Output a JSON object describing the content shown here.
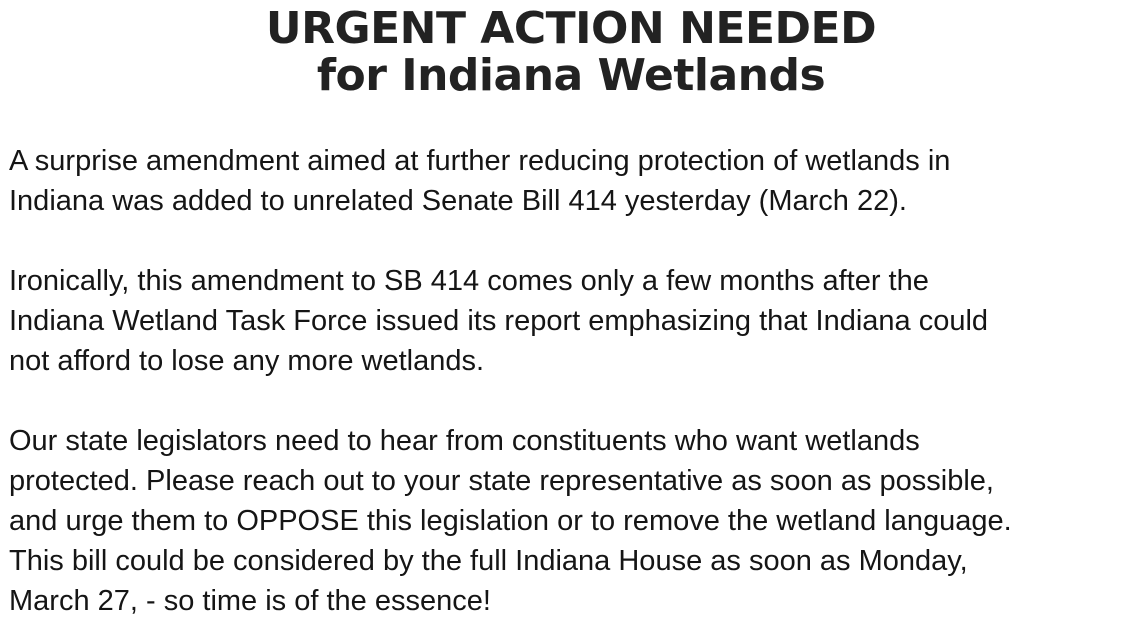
{
  "headline": {
    "line1": "URGENT ACTION NEEDED",
    "line2": "for Indiana Wetlands"
  },
  "paragraphs": [
    {
      "lines": [
        "A surprise amendment aimed at further reducing protection of wetlands in",
        "Indiana was added to unrelated Senate Bill 414 yesterday (March 22)."
      ]
    },
    {
      "lines": [
        "Ironically, this amendment to SB 414 comes only a few months after the",
        "Indiana Wetland Task Force issued its report emphasizing that Indiana could",
        "not afford to lose any more wetlands."
      ]
    },
    {
      "lines": [
        "Our state legislators need to hear from constituents who want wetlands",
        "protected. Please reach out to your state representative as soon as possible,",
        "and urge them to OPPOSE this legislation or to remove the wetland language.",
        "This bill could be considered by the full Indiana House as soon as Monday,",
        "March 27, - so time is of the essence!"
      ]
    }
  ]
}
